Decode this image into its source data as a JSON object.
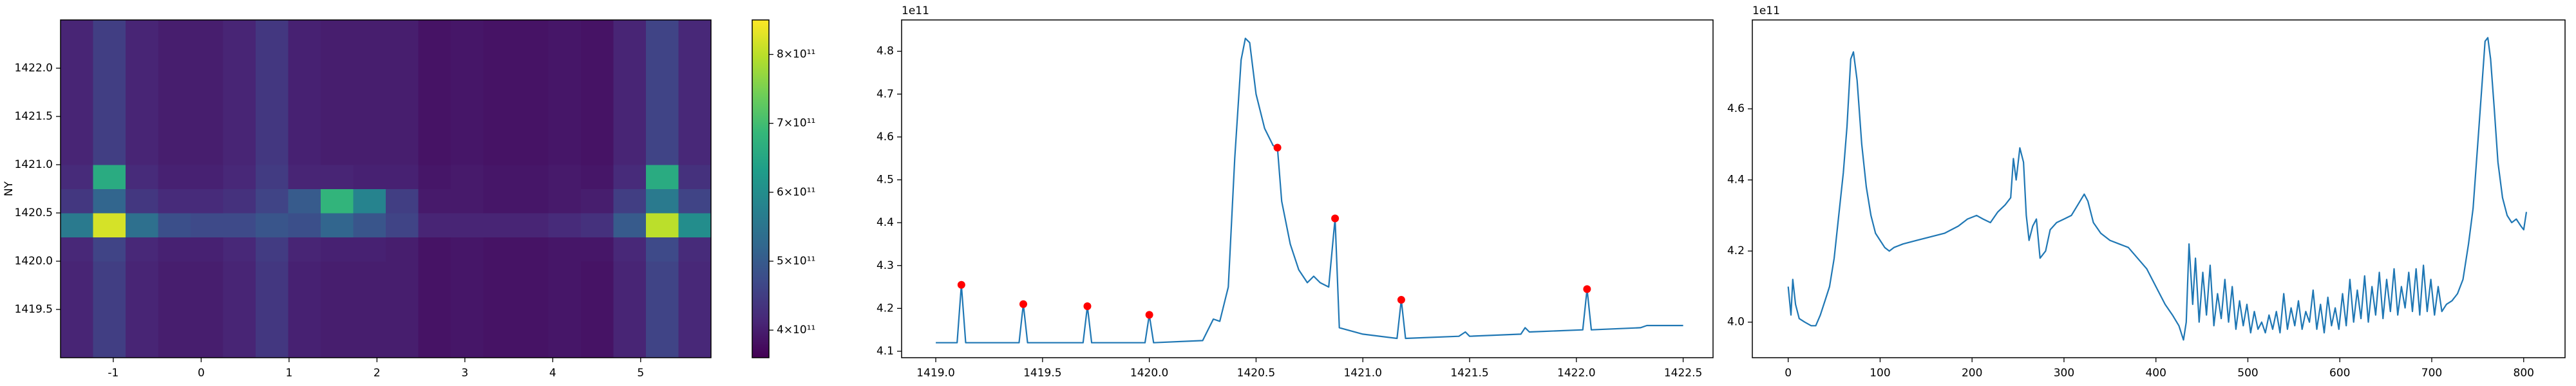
{
  "chart_data": [
    {
      "type": "heatmap",
      "ylabel": "NY",
      "colormap": "viridis",
      "xlim": [
        -1.6,
        5.8
      ],
      "ylim": [
        1419.0,
        1422.5
      ],
      "xticks": [
        -1,
        0,
        1,
        2,
        3,
        4,
        5
      ],
      "yticks": [
        1419.5,
        {
          "value": 1420.0,
          "label": "1420.0"
        },
        1420.5,
        {
          "value": 1421.0,
          "label": "1421.0"
        },
        1421.5,
        {
          "value": 1422.0,
          "label": "1422.0"
        }
      ],
      "x_edges": [
        -1.6,
        -1.23,
        -0.86,
        -0.49,
        -0.12,
        0.25,
        0.62,
        0.99,
        1.36,
        1.73,
        2.1,
        2.47,
        2.84,
        3.21,
        3.58,
        3.95,
        4.32,
        4.69,
        5.06,
        5.43,
        5.8
      ],
      "y_edges": [
        1419.0,
        1419.25,
        1419.5,
        1419.75,
        1420.0,
        1420.25,
        1420.5,
        1420.75,
        1421.0,
        1421.25,
        1421.5,
        1421.75,
        1422.0,
        1422.25,
        1422.5
      ],
      "z": [
        [
          410000000000.0,
          450000000000.0,
          410000000000.0,
          400000000000.0,
          400000000000.0,
          410000000000.0,
          440000000000.0,
          405000000000.0,
          400000000000.0,
          400000000000.0,
          400000000000.0,
          385000000000.0,
          390000000000.0,
          385000000000.0,
          385000000000.0,
          390000000000.0,
          385000000000.0,
          410000000000.0,
          460000000000.0,
          415000000000.0
        ],
        [
          410000000000.0,
          450000000000.0,
          410000000000.0,
          400000000000.0,
          400000000000.0,
          410000000000.0,
          440000000000.0,
          405000000000.0,
          400000000000.0,
          400000000000.0,
          400000000000.0,
          385000000000.0,
          390000000000.0,
          385000000000.0,
          385000000000.0,
          390000000000.0,
          385000000000.0,
          410000000000.0,
          460000000000.0,
          415000000000.0
        ],
        [
          410000000000.0,
          450000000000.0,
          410000000000.0,
          400000000000.0,
          400000000000.0,
          410000000000.0,
          440000000000.0,
          405000000000.0,
          400000000000.0,
          400000000000.0,
          400000000000.0,
          385000000000.0,
          390000000000.0,
          385000000000.0,
          385000000000.0,
          390000000000.0,
          385000000000.0,
          410000000000.0,
          460000000000.0,
          415000000000.0
        ],
        [
          410000000000.0,
          450000000000.0,
          410000000000.0,
          400000000000.0,
          400000000000.0,
          410000000000.0,
          440000000000.0,
          405000000000.0,
          400000000000.0,
          400000000000.0,
          400000000000.0,
          385000000000.0,
          390000000000.0,
          385000000000.0,
          385000000000.0,
          390000000000.0,
          385000000000.0,
          410000000000.0,
          460000000000.0,
          415000000000.0
        ],
        [
          415000000000.0,
          460000000000.0,
          415000000000.0,
          405000000000.0,
          405000000000.0,
          415000000000.0,
          445000000000.0,
          410000000000.0,
          405000000000.0,
          405000000000.0,
          400000000000.0,
          385000000000.0,
          390000000000.0,
          385000000000.0,
          385000000000.0,
          390000000000.0,
          390000000000.0,
          415000000000.0,
          470000000000.0,
          420000000000.0
        ],
        [
          560000000000.0,
          820000000000.0,
          540000000000.0,
          480000000000.0,
          470000000000.0,
          470000000000.0,
          490000000000.0,
          480000000000.0,
          520000000000.0,
          490000000000.0,
          460000000000.0,
          410000000000.0,
          410000000000.0,
          410000000000.0,
          410000000000.0,
          420000000000.0,
          430000000000.0,
          500000000000.0,
          800000000000.0,
          600000000000.0
        ],
        [
          440000000000.0,
          520000000000.0,
          440000000000.0,
          420000000000.0,
          420000000000.0,
          430000000000.0,
          460000000000.0,
          500000000000.0,
          680000000000.0,
          580000000000.0,
          450000000000.0,
          395000000000.0,
          395000000000.0,
          390000000000.0,
          390000000000.0,
          395000000000.0,
          400000000000.0,
          450000000000.0,
          560000000000.0,
          460000000000.0
        ],
        [
          420000000000.0,
          660000000000.0,
          420000000000.0,
          405000000000.0,
          405000000000.0,
          415000000000.0,
          445000000000.0,
          410000000000.0,
          410000000000.0,
          405000000000.0,
          405000000000.0,
          390000000000.0,
          395000000000.0,
          390000000000.0,
          390000000000.0,
          395000000000.0,
          390000000000.0,
          420000000000.0,
          660000000000.0,
          430000000000.0
        ],
        [
          410000000000.0,
          450000000000.0,
          410000000000.0,
          400000000000.0,
          400000000000.0,
          410000000000.0,
          440000000000.0,
          405000000000.0,
          400000000000.0,
          400000000000.0,
          400000000000.0,
          385000000000.0,
          390000000000.0,
          385000000000.0,
          385000000000.0,
          390000000000.0,
          385000000000.0,
          410000000000.0,
          460000000000.0,
          415000000000.0
        ],
        [
          410000000000.0,
          450000000000.0,
          410000000000.0,
          400000000000.0,
          400000000000.0,
          410000000000.0,
          440000000000.0,
          405000000000.0,
          400000000000.0,
          400000000000.0,
          400000000000.0,
          385000000000.0,
          390000000000.0,
          385000000000.0,
          385000000000.0,
          390000000000.0,
          385000000000.0,
          410000000000.0,
          460000000000.0,
          415000000000.0
        ],
        [
          410000000000.0,
          450000000000.0,
          410000000000.0,
          400000000000.0,
          400000000000.0,
          410000000000.0,
          440000000000.0,
          405000000000.0,
          400000000000.0,
          400000000000.0,
          400000000000.0,
          385000000000.0,
          390000000000.0,
          385000000000.0,
          385000000000.0,
          390000000000.0,
          385000000000.0,
          410000000000.0,
          460000000000.0,
          415000000000.0
        ],
        [
          410000000000.0,
          450000000000.0,
          410000000000.0,
          400000000000.0,
          400000000000.0,
          410000000000.0,
          440000000000.0,
          405000000000.0,
          400000000000.0,
          400000000000.0,
          400000000000.0,
          385000000000.0,
          390000000000.0,
          385000000000.0,
          385000000000.0,
          390000000000.0,
          385000000000.0,
          410000000000.0,
          460000000000.0,
          415000000000.0
        ],
        [
          410000000000.0,
          450000000000.0,
          410000000000.0,
          400000000000.0,
          400000000000.0,
          410000000000.0,
          440000000000.0,
          405000000000.0,
          400000000000.0,
          400000000000.0,
          400000000000.0,
          385000000000.0,
          390000000000.0,
          385000000000.0,
          385000000000.0,
          390000000000.0,
          385000000000.0,
          410000000000.0,
          460000000000.0,
          415000000000.0
        ],
        [
          410000000000.0,
          450000000000.0,
          410000000000.0,
          400000000000.0,
          400000000000.0,
          410000000000.0,
          440000000000.0,
          405000000000.0,
          400000000000.0,
          400000000000.0,
          400000000000.0,
          385000000000.0,
          390000000000.0,
          385000000000.0,
          385000000000.0,
          390000000000.0,
          385000000000.0,
          410000000000.0,
          460000000000.0,
          415000000000.0
        ]
      ],
      "zlim": [
        360000000000.0,
        850000000000.0
      ],
      "zticks": [
        {
          "value": 400000000000.0,
          "label": "4×10¹¹"
        },
        {
          "value": 500000000000.0,
          "label": "5×10¹¹"
        },
        {
          "value": 600000000000.0,
          "label": "6×10¹¹"
        },
        {
          "value": 700000000000.0,
          "label": "7×10¹¹"
        },
        {
          "value": 800000000000.0,
          "label": "8×10¹¹"
        }
      ]
    },
    {
      "type": "line",
      "offset_text": "1e11",
      "color": "#1f77b4",
      "xlim": [
        1418.84,
        1422.64
      ],
      "ylim": [
        4.085,
        4.873
      ],
      "xticks": [
        {
          "value": 1419.0,
          "label": "1419.0"
        },
        1419.5,
        {
          "value": 1420.0,
          "label": "1420.0"
        },
        1420.5,
        {
          "value": 1421.0,
          "label": "1421.0"
        },
        1421.5,
        {
          "value": 1422.0,
          "label": "1422.0"
        },
        1422.5
      ],
      "yticks": [
        4.1,
        4.2,
        4.3,
        4.4,
        4.5,
        4.6,
        4.7,
        4.8
      ],
      "x": [
        1419.0,
        1419.1,
        1419.12,
        1419.14,
        1419.39,
        1419.41,
        1419.43,
        1419.69,
        1419.71,
        1419.73,
        1419.98,
        1420.0,
        1420.02,
        1420.25,
        1420.3,
        1420.33,
        1420.37,
        1420.4,
        1420.43,
        1420.45,
        1420.47,
        1420.5,
        1420.54,
        1420.58,
        1420.6,
        1420.62,
        1420.66,
        1420.7,
        1420.74,
        1420.77,
        1420.8,
        1420.84,
        1420.87,
        1420.89,
        1421.0,
        1421.16,
        1421.18,
        1421.2,
        1421.45,
        1421.48,
        1421.5,
        1421.74,
        1421.76,
        1421.78,
        1422.03,
        1422.05,
        1422.07,
        1422.3,
        1422.33,
        1422.5
      ],
      "values": [
        4.12,
        4.12,
        4.255,
        4.12,
        4.12,
        4.21,
        4.12,
        4.12,
        4.205,
        4.12,
        4.12,
        4.185,
        4.12,
        4.125,
        4.175,
        4.17,
        4.25,
        4.55,
        4.78,
        4.83,
        4.82,
        4.7,
        4.62,
        4.58,
        4.575,
        4.45,
        4.35,
        4.29,
        4.26,
        4.275,
        4.26,
        4.25,
        4.41,
        4.155,
        4.14,
        4.13,
        4.22,
        4.13,
        4.135,
        4.145,
        4.135,
        4.14,
        4.155,
        4.145,
        4.15,
        4.245,
        4.15,
        4.155,
        4.16,
        4.16
      ],
      "markers": {
        "color": "#ff0000",
        "x": [
          1419.12,
          1419.41,
          1419.71,
          1420.0,
          1420.6,
          1420.87,
          1421.18,
          1422.05
        ],
        "values": [
          4.255,
          4.21,
          4.205,
          4.185,
          4.575,
          4.41,
          4.22,
          4.245
        ]
      }
    },
    {
      "type": "line",
      "offset_text": "1e11",
      "color": "#1f77b4",
      "xlim": [
        -39,
        845
      ],
      "ylim": [
        3.9,
        4.85
      ],
      "xticks": [
        0,
        100,
        200,
        300,
        400,
        500,
        600,
        700,
        800
      ],
      "yticks": [
        {
          "value": 4.0,
          "label": "4.0"
        },
        4.2,
        4.4,
        4.6
      ],
      "x": [
        0,
        3,
        5,
        8,
        12,
        18,
        25,
        30,
        35,
        40,
        45,
        50,
        55,
        60,
        64,
        68,
        71,
        75,
        80,
        85,
        90,
        95,
        100,
        105,
        110,
        115,
        125,
        140,
        155,
        170,
        185,
        195,
        205,
        212,
        220,
        228,
        236,
        242,
        245,
        248,
        252,
        256,
        259,
        262,
        266,
        270,
        274,
        280,
        285,
        292,
        300,
        308,
        315,
        322,
        326,
        332,
        340,
        350,
        360,
        370,
        380,
        390,
        400,
        410,
        418,
        425,
        430,
        433,
        436,
        440,
        443,
        447,
        451,
        455,
        459,
        463,
        467,
        471,
        475,
        479,
        483,
        487,
        491,
        495,
        499,
        503,
        507,
        511,
        515,
        519,
        523,
        527,
        531,
        535,
        539,
        543,
        547,
        551,
        555,
        559,
        563,
        567,
        571,
        575,
        579,
        583,
        587,
        591,
        595,
        599,
        603,
        607,
        611,
        615,
        619,
        623,
        627,
        631,
        635,
        639,
        643,
        647,
        651,
        655,
        659,
        663,
        667,
        671,
        675,
        679,
        683,
        687,
        691,
        695,
        699,
        703,
        707,
        711,
        716,
        722,
        728,
        734,
        740,
        745,
        750,
        755,
        758,
        761,
        764,
        768,
        772,
        777,
        782,
        787,
        792,
        797,
        800,
        803
      ],
      "values": [
        4.1,
        4.02,
        4.12,
        4.05,
        4.01,
        4.0,
        3.99,
        3.99,
        4.02,
        4.06,
        4.1,
        4.18,
        4.3,
        4.42,
        4.55,
        4.74,
        4.76,
        4.68,
        4.5,
        4.38,
        4.3,
        4.25,
        4.23,
        4.21,
        4.2,
        4.21,
        4.22,
        4.23,
        4.24,
        4.25,
        4.27,
        4.29,
        4.3,
        4.29,
        4.28,
        4.31,
        4.33,
        4.35,
        4.46,
        4.4,
        4.49,
        4.45,
        4.3,
        4.23,
        4.27,
        4.29,
        4.18,
        4.2,
        4.26,
        4.28,
        4.29,
        4.3,
        4.33,
        4.36,
        4.34,
        4.28,
        4.25,
        4.23,
        4.22,
        4.21,
        4.18,
        4.15,
        4.1,
        4.05,
        4.02,
        3.99,
        3.95,
        4.0,
        4.22,
        4.05,
        4.18,
        4.0,
        4.14,
        4.02,
        4.16,
        3.99,
        4.08,
        4.01,
        4.12,
        4.0,
        4.1,
        3.98,
        4.06,
        3.99,
        4.05,
        3.97,
        4.03,
        3.98,
        4.0,
        3.97,
        4.02,
        3.98,
        4.03,
        3.97,
        4.08,
        3.98,
        4.04,
        3.99,
        4.06,
        3.98,
        4.03,
        4.0,
        4.09,
        3.98,
        4.05,
        3.97,
        4.07,
        3.99,
        4.04,
        3.98,
        4.08,
        3.99,
        4.12,
        4.0,
        4.09,
        4.01,
        4.13,
        4.0,
        4.1,
        4.02,
        4.14,
        4.01,
        4.12,
        4.03,
        4.15,
        4.02,
        4.1,
        4.04,
        4.14,
        4.03,
        4.15,
        4.02,
        4.16,
        4.03,
        4.12,
        4.02,
        4.1,
        4.03,
        4.05,
        4.06,
        4.08,
        4.12,
        4.22,
        4.32,
        4.5,
        4.68,
        4.79,
        4.8,
        4.74,
        4.6,
        4.45,
        4.35,
        4.3,
        4.28,
        4.29,
        4.27,
        4.26,
        4.31
      ]
    }
  ]
}
